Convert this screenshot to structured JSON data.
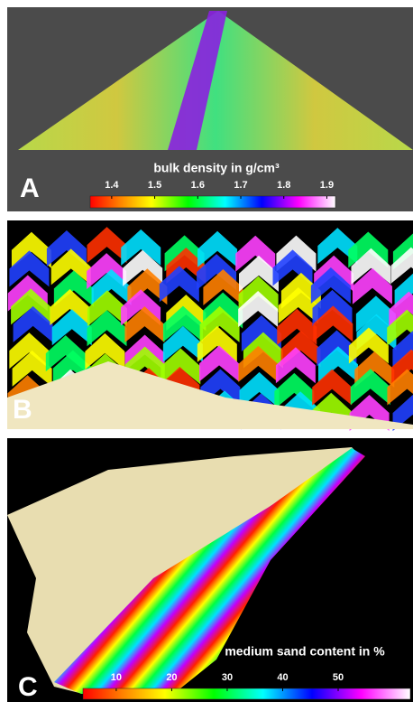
{
  "panels": [
    {
      "label": "A",
      "colorbar": {
        "title": "bulk density in g/cm³",
        "lim": [
          1.35,
          1.92
        ],
        "ticks": [
          1.4,
          1.5,
          1.6,
          1.7,
          1.8,
          1.9
        ]
      }
    },
    {
      "label": "B"
    },
    {
      "label": "C",
      "colorbar": {
        "title": "medium sand content in %",
        "lim": [
          4,
          63
        ],
        "ticks": [
          10,
          20,
          30,
          40,
          50
        ]
      }
    }
  ]
}
